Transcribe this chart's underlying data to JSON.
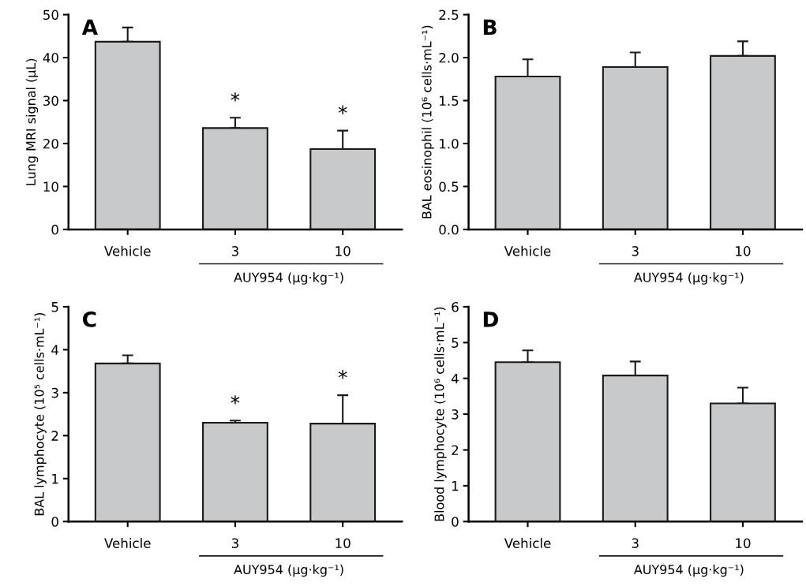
{
  "chart_data": [
    {
      "type": "bar",
      "title": "A",
      "ylabel": "Lung MRI signal (µL)",
      "xlabel": "AUY954 (µg·kg⁻¹)",
      "categories": [
        "Vehicle",
        "3",
        "10"
      ],
      "values": [
        43.7,
        23.6,
        18.7
      ],
      "color": "#c8c9cb",
      "errors": [
        [
          43.7,
          47.0
        ],
        [
          23.6,
          26.0
        ],
        [
          18.7,
          23.0
        ]
      ],
      "ylim": [
        0,
        50
      ],
      "yticks": [
        0,
        10,
        20,
        30,
        40,
        50
      ],
      "annotations": [
        {
          "text": "*",
          "x": "3",
          "y": 26.0
        },
        {
          "text": "*",
          "x": "10",
          "y": 23.0
        }
      ],
      "grid": false,
      "legend": false
    },
    {
      "type": "bar",
      "title": "B",
      "ylabel": "BAL eosinophil (10⁶ cells·mL⁻¹)",
      "xlabel": "AUY954 (µg·kg⁻¹)",
      "categories": [
        "Vehicle",
        "3",
        "10"
      ],
      "values": [
        1.78,
        1.89,
        2.02
      ],
      "color": "#c8c9cb",
      "errors": [
        [
          1.78,
          1.98
        ],
        [
          1.89,
          2.06
        ],
        [
          2.02,
          2.19
        ]
      ],
      "ylim": [
        0,
        2.5
      ],
      "yticks": [
        {
          "value": 0,
          "label": "0.0"
        },
        {
          "value": 0.5,
          "label": "0.5"
        },
        {
          "value": 1,
          "label": "1.0"
        },
        {
          "value": 1.5,
          "label": "1.5"
        },
        {
          "value": 2,
          "label": "2.0"
        },
        {
          "value": 2.5,
          "label": "2.5"
        }
      ],
      "grid": false,
      "legend": false
    },
    {
      "type": "bar",
      "title": "C",
      "ylabel": "BAL lymphocyte (10⁵ cells·mL⁻¹)",
      "xlabel": "AUY954 (µg·kg⁻¹)",
      "categories": [
        "Vehicle",
        "3",
        "10"
      ],
      "values": [
        3.68,
        2.3,
        2.28
      ],
      "color": "#c8c9cb",
      "errors": [
        [
          3.68,
          3.87
        ],
        [
          2.3,
          2.35
        ],
        [
          2.28,
          2.94
        ]
      ],
      "ylim": [
        0,
        5
      ],
      "yticks": [
        0,
        1,
        2,
        3,
        4,
        5
      ],
      "annotations": [
        {
          "text": "*",
          "x": "3",
          "y": 2.35
        },
        {
          "text": "*",
          "x": "10",
          "y": 2.94
        }
      ],
      "grid": false,
      "legend": false
    },
    {
      "type": "bar",
      "title": "D",
      "ylabel": "Blood lymphocyte (10⁶ cells·mL⁻¹)",
      "xlabel": "AUY954 (µg·kg⁻¹)",
      "categories": [
        "Vehicle",
        "3",
        "10"
      ],
      "values": [
        4.45,
        4.08,
        3.3
      ],
      "color": "#c8c9cb",
      "errors": [
        [
          4.45,
          4.78
        ],
        [
          4.08,
          4.47
        ],
        [
          3.3,
          3.74
        ]
      ],
      "ylim": [
        0,
        6
      ],
      "yticks": [
        0,
        1,
        2,
        3,
        4,
        5,
        6
      ],
      "grid": false,
      "legend": false
    }
  ]
}
